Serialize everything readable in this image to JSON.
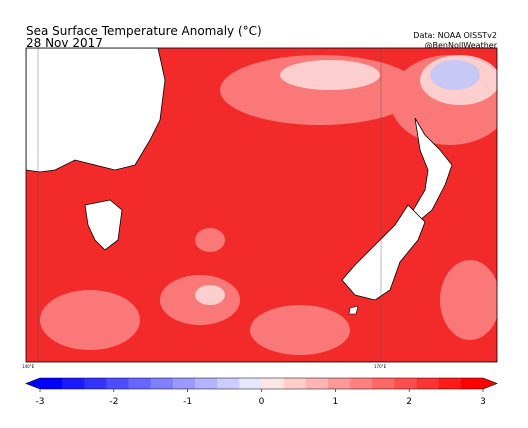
{
  "header": {
    "title": "Sea Surface Temperature Anomaly (°C)",
    "date": "28 Nov 2017",
    "source": "Data: NOAA OISSTv2",
    "credit": "@BenNollWeather"
  },
  "map": {
    "lon_labels": [
      "140°E",
      "170°E"
    ]
  },
  "colorbar": {
    "range": [
      -3,
      3
    ],
    "ticks": [
      -3,
      -2,
      -1,
      0,
      1,
      2,
      3
    ],
    "colors": [
      "#0000ff",
      "#1a1aff",
      "#3333ff",
      "#4d4dff",
      "#6666ff",
      "#8080ff",
      "#9999ff",
      "#b3b3ff",
      "#ccccff",
      "#e6e6ff",
      "#ffe6e6",
      "#ffcccc",
      "#ffb3b3",
      "#ff9999",
      "#ff8080",
      "#ff6666",
      "#ff4d4d",
      "#ff3333",
      "#ff1a1a",
      "#ff0000"
    ]
  }
}
